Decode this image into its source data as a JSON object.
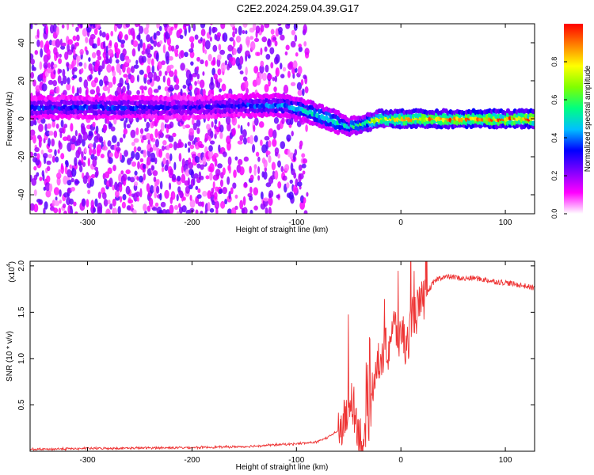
{
  "figure": {
    "title": "C2E2.2024.259.04.39.G17"
  },
  "chart_data": [
    {
      "type": "heatmap",
      "xlabel": "Height of straight line (km)",
      "ylabel": "Frequency (Hz)",
      "xlim": [
        -355,
        128
      ],
      "ylim": [
        -50,
        50
      ],
      "xticks": [
        -300,
        -200,
        -100,
        0,
        100
      ],
      "yticks": [
        -40,
        -20,
        0,
        20,
        40
      ],
      "colorbar": {
        "label": "Normalized spectral amplitude",
        "range": [
          0,
          1
        ],
        "ticks": [
          "0.0",
          "0.2",
          "0.4",
          "0.6",
          "0.8"
        ],
        "colors": [
          "#ffffff",
          "#ff00ff",
          "#8000ff",
          "#0000ff",
          "#00c0ff",
          "#00ff80",
          "#80ff00",
          "#ffff00",
          "#ff8000",
          "#ff0000"
        ]
      },
      "ridge": {
        "x": [
          -355,
          -300,
          -250,
          -200,
          -150,
          -110,
          -90,
          -70,
          -50,
          -40,
          -20,
          0,
          50,
          128
        ],
        "freq": [
          6,
          6,
          6,
          6,
          7,
          7,
          4,
          0,
          -4,
          -3,
          0,
          0,
          0,
          0
        ],
        "amplitude": [
          0.35,
          0.35,
          0.35,
          0.3,
          0.35,
          0.45,
          0.5,
          0.55,
          0.5,
          0.6,
          0.75,
          0.85,
          0.9,
          0.9
        ]
      },
      "grid": false
    },
    {
      "type": "line",
      "xlabel": "Height of straight line (km)",
      "ylabel": "SNR (10 * v/v)",
      "yscale_label": "(x10",
      "yscale_exp": "4",
      "xlim": [
        -355,
        128
      ],
      "ylim": [
        0,
        2.05
      ],
      "xticks": [
        -300,
        -200,
        -100,
        0,
        100
      ],
      "yticks": [
        0.5,
        1.0,
        1.5,
        2.0
      ],
      "ytick_labels": [
        "0.5",
        "1.0",
        "1.5",
        "2.0"
      ],
      "color": "#ee3333",
      "x": [
        -355,
        -300,
        -200,
        -150,
        -120,
        -100,
        -90,
        -80,
        -70,
        -60,
        -55,
        -50,
        -47,
        -44,
        -40,
        -37,
        -34,
        -31,
        -28,
        -25,
        -22,
        -19,
        -16,
        -13,
        -10,
        -7,
        -4,
        -1,
        0,
        5,
        10,
        15,
        20,
        25,
        30,
        35,
        40,
        50,
        60,
        70,
        80,
        90,
        100,
        110,
        120,
        128
      ],
      "y": [
        0.02,
        0.03,
        0.04,
        0.05,
        0.07,
        0.08,
        0.09,
        0.1,
        0.15,
        0.22,
        0.3,
        0.45,
        0.6,
        0.4,
        0.22,
        0.1,
        0.06,
        0.2,
        0.6,
        0.9,
        1.0,
        0.8,
        1.2,
        1.0,
        1.25,
        1.35,
        1.3,
        1.15,
        1.4,
        1.05,
        1.45,
        1.5,
        1.6,
        1.7,
        1.8,
        1.86,
        1.88,
        1.88,
        1.86,
        1.87,
        1.85,
        1.83,
        1.82,
        1.8,
        1.78,
        1.76
      ],
      "grid": false
    }
  ]
}
